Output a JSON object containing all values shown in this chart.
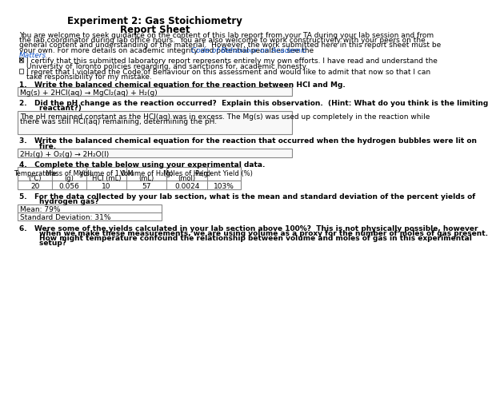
{
  "title": "Experiment 2: Gas Stoichiometry",
  "subtitle": "Report Sheet",
  "checkbox1_checked": true,
  "checkbox1_line1": "I certify that this submitted laboratory report represents entirely my own efforts. I have read and understand the",
  "checkbox1_line2": "University of Toronto policies regarding, and sanctions for, academic honesty.",
  "checkbox2_line1": "I regret that I violated the Code of Behaviour on this assessment and would like to admit that now so that I can",
  "checkbox2_line2": "take responsibility for my mistake.",
  "q1_label": "1.   Write the balanced chemical equation for the reaction between HCl and Mg.",
  "q1_answer": "Mg(s) + 2HCl(aq) → MgCl₂(aq) + H₂(g)",
  "q2_label_line1": "2.   Did the pH change as the reaction occurred?  Explain this observation.  (Hint: What do you think is the limiting",
  "q2_label_line2": "        reactant?)",
  "q2_answer_line1": "The pH remained constant as the HCl(aq) was in excess. The Mg(s) was used up completely in the reaction while",
  "q2_answer_line2": "there was still HCl(aq) remaining, determining the pH.",
  "q3_label_line1": "3.   Write the balanced chemical equation for the reaction that occurred when the hydrogen bubbles were lit on",
  "q3_label_line2": "        fire.",
  "q3_answer": "2H₂(g) + O₂(g) → 2H₂O(l)",
  "q4_label": "4.   Complete the table below using your experimental data.",
  "table_headers": [
    "Temperature\n(°C)",
    "Mass of Mg(s)\n(g)",
    "Volume of 1.0 M\nHCl (mL)",
    "Volume of H₂(g)\n(mL)",
    "Moles of H₂(g)\n(mol)",
    "Percent Yield (%)"
  ],
  "table_data": [
    "20",
    "0.056",
    "10",
    "57",
    "0.0024",
    "103%"
  ],
  "q5_label_line1": "5.   For the data collected by your lab section, what is the mean and standard deviation of the percent yields of",
  "q5_label_line2": "        hydrogen gas?",
  "q5_answer_line1": "Mean: 79%",
  "q5_answer_line2": "Standard Deviation: 31%",
  "q6_label_line1": "6.   Were some of the yields calculated in your lab section above 100%?  This is not physically possible, however",
  "q6_label_line2": "        when we make these measurements, we are using volume as a proxy for the number of moles of gas present.",
  "q6_label_line3": "        How might temperature confound the relationship between volume and moles of gas in this experimental",
  "q6_label_line4": "        setup?",
  "intro_line1": "You are welcome to seek guidance on the content of this lab report from your TA during your lab session and from",
  "intro_line2": "the lab coordinator during lab office hours.  You are also welcome to work constructively with your peers on the",
  "intro_line3": "general content and understanding of the material.  However, the work submitted here in this report sheet must be",
  "intro_line4": "your own. For more details on academic integrity and potential penalties see the ",
  "intro_link": "Code of Behaviour on Academic",
  "intro_line5": "Matters",
  "bg_color": "#ffffff",
  "text_color": "#000000",
  "link_color": "#1155cc",
  "font_size": 6.5,
  "title_font_size": 8.5
}
